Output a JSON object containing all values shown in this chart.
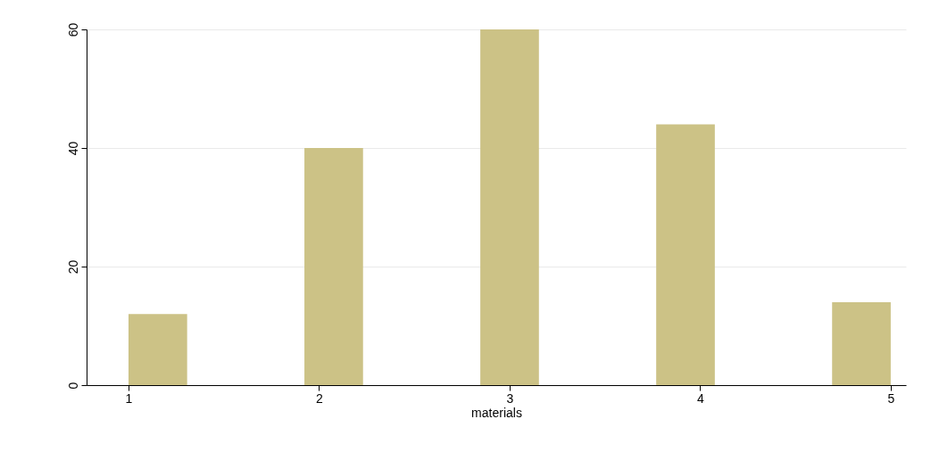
{
  "chart_data": {
    "type": "histogram",
    "xlabel": "materials",
    "bins": [
      1,
      1.3077,
      1.6154,
      1.9231,
      2.2308,
      2.5385,
      2.8462,
      3.1538,
      3.4615,
      3.7692,
      4.0769,
      4.3846,
      4.6923,
      5
    ],
    "values": [
      12,
      0,
      0,
      40,
      0,
      0,
      60,
      0,
      0,
      44,
      0,
      0,
      14
    ],
    "color": "#ccc286",
    "xlim": [
      0.78,
      5.08
    ],
    "xticks": [
      1,
      2,
      3,
      4,
      5
    ],
    "ylim": [
      0,
      60
    ],
    "yticks": [
      0,
      20,
      40,
      60
    ],
    "grid": "y"
  }
}
